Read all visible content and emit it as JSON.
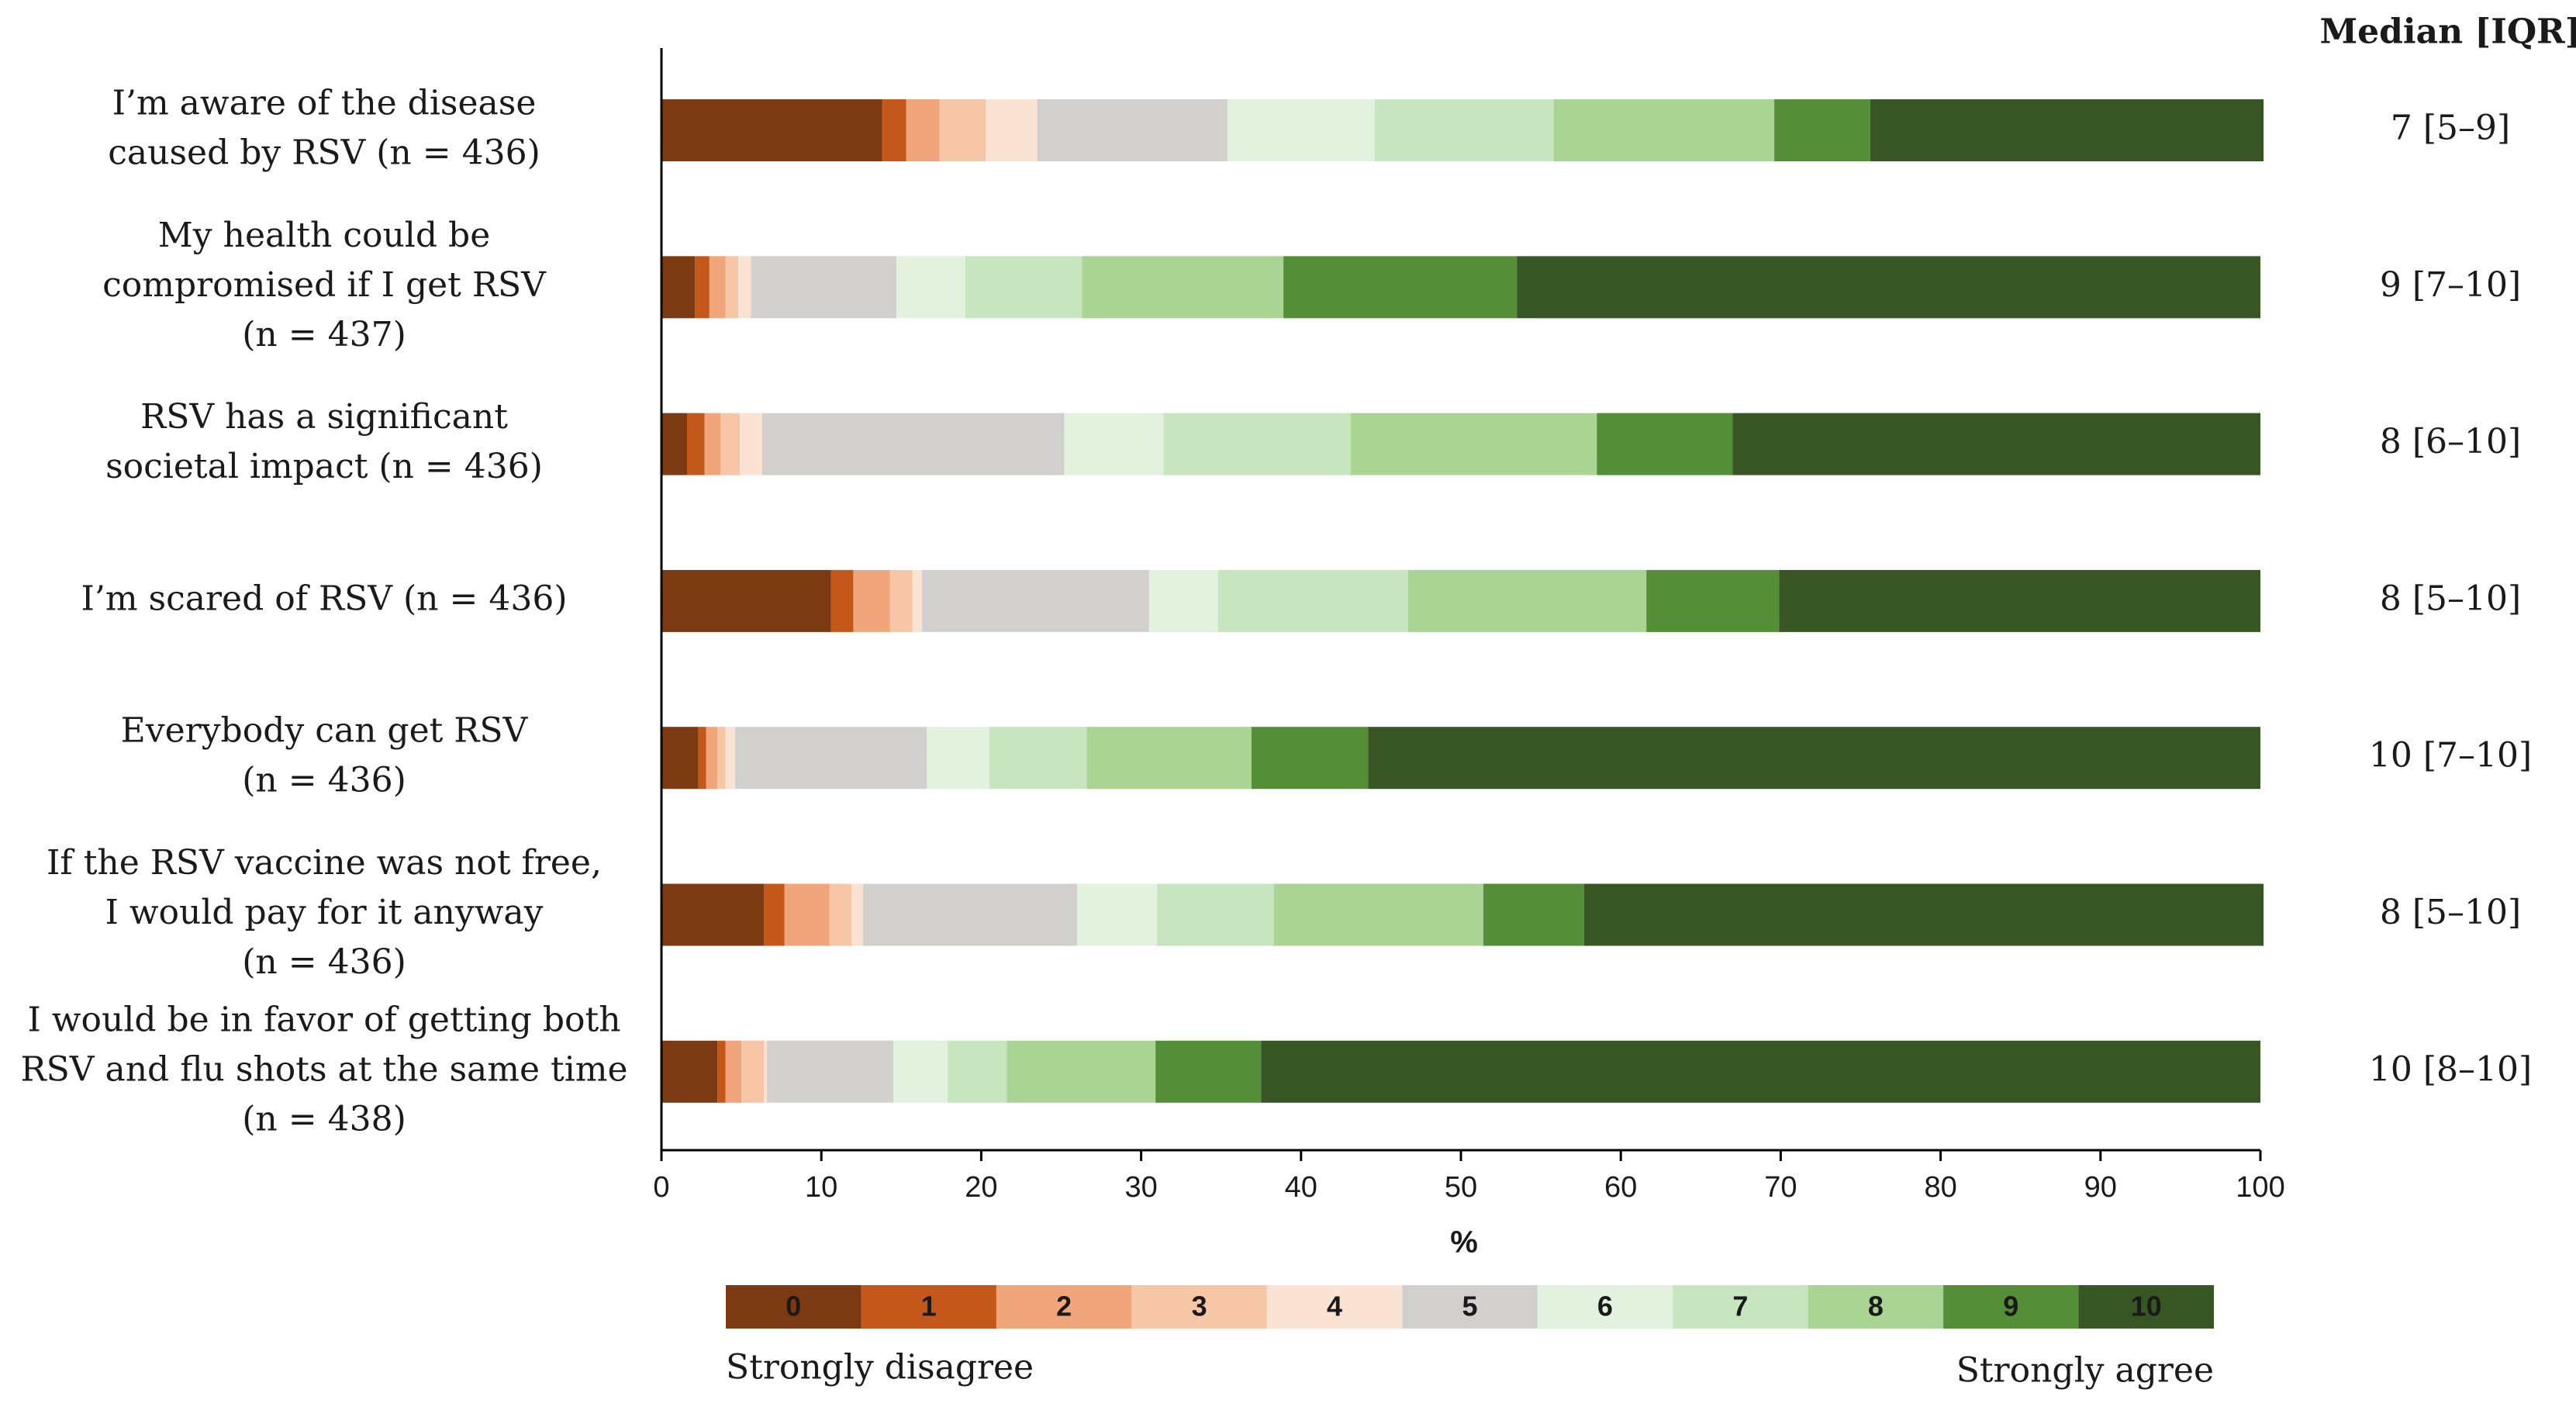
{
  "chart_data": {
    "type": "bar",
    "orientation": "horizontal",
    "stacked": true,
    "xlabel": "%",
    "xlim": [
      0,
      100
    ],
    "x_ticks": [
      0,
      10,
      20,
      30,
      40,
      50,
      60,
      70,
      80,
      90,
      100
    ],
    "median_header": "Median [IQR]",
    "scale_levels": [
      "0",
      "1",
      "2",
      "3",
      "4",
      "5",
      "6",
      "7",
      "8",
      "9",
      "10"
    ],
    "scale_colors": [
      "#7B3A12",
      "#C4581B",
      "#F0A57A",
      "#F6C6A7",
      "#FBE3D3",
      "#D2D0CF",
      "#E3F2DF",
      "#C7E6BF",
      "#A9D494",
      "#548E36",
      "#375623"
    ],
    "scale_min_label": "Strongly disagree",
    "scale_max_label": "Strongly agree",
    "statements": [
      {
        "label_lines": [
          "I’m aware of the disease",
          "caused by RSV (n = 436)"
        ],
        "median": "7 [5–9]",
        "values": [
          13.8,
          1.5,
          2.1,
          2.9,
          3.2,
          11.9,
          9.2,
          11.2,
          13.8,
          6.0,
          24.6
        ]
      },
      {
        "label_lines": [
          "My health could be",
          "compromised if I get RSV",
          "(n = 437)"
        ],
        "median": "9 [7–10]",
        "values": [
          2.1,
          0.9,
          1.0,
          0.8,
          0.8,
          9.1,
          4.3,
          7.3,
          12.6,
          14.6,
          46.5
        ]
      },
      {
        "label_lines": [
          "RSV has a significant",
          "societal impact (n = 436)"
        ],
        "median": "8 [6–10]",
        "values": [
          1.6,
          1.1,
          1.0,
          1.2,
          1.4,
          18.9,
          6.2,
          11.7,
          15.4,
          8.5,
          33.0
        ]
      },
      {
        "label_lines": [
          "I’m scared of RSV (n = 436)"
        ],
        "median": "8 [5–10]",
        "values": [
          10.6,
          1.4,
          2.3,
          1.4,
          0.6,
          14.2,
          4.3,
          11.9,
          14.9,
          8.3,
          30.1
        ]
      },
      {
        "label_lines": [
          "Everybody can get RSV",
          "(n = 436)"
        ],
        "median": "10 [7–10]",
        "values": [
          2.3,
          0.5,
          0.7,
          0.5,
          0.6,
          12.0,
          3.9,
          6.1,
          10.3,
          7.3,
          55.8
        ]
      },
      {
        "label_lines": [
          "If the RSV vaccine was not free,",
          "I would pay for it anyway",
          "(n = 436)"
        ],
        "median": "8 [5–10]",
        "values": [
          6.4,
          1.3,
          2.8,
          1.4,
          0.7,
          13.4,
          5.0,
          7.3,
          13.1,
          6.3,
          42.5
        ]
      },
      {
        "label_lines": [
          "I would be in favor of getting both",
          "RSV and flu shots at the same time",
          "(n = 438)"
        ],
        "median": "10 [8–10]",
        "values": [
          3.5,
          0.5,
          1.0,
          1.4,
          0.2,
          7.9,
          3.4,
          3.7,
          9.3,
          6.6,
          62.5
        ]
      }
    ]
  }
}
